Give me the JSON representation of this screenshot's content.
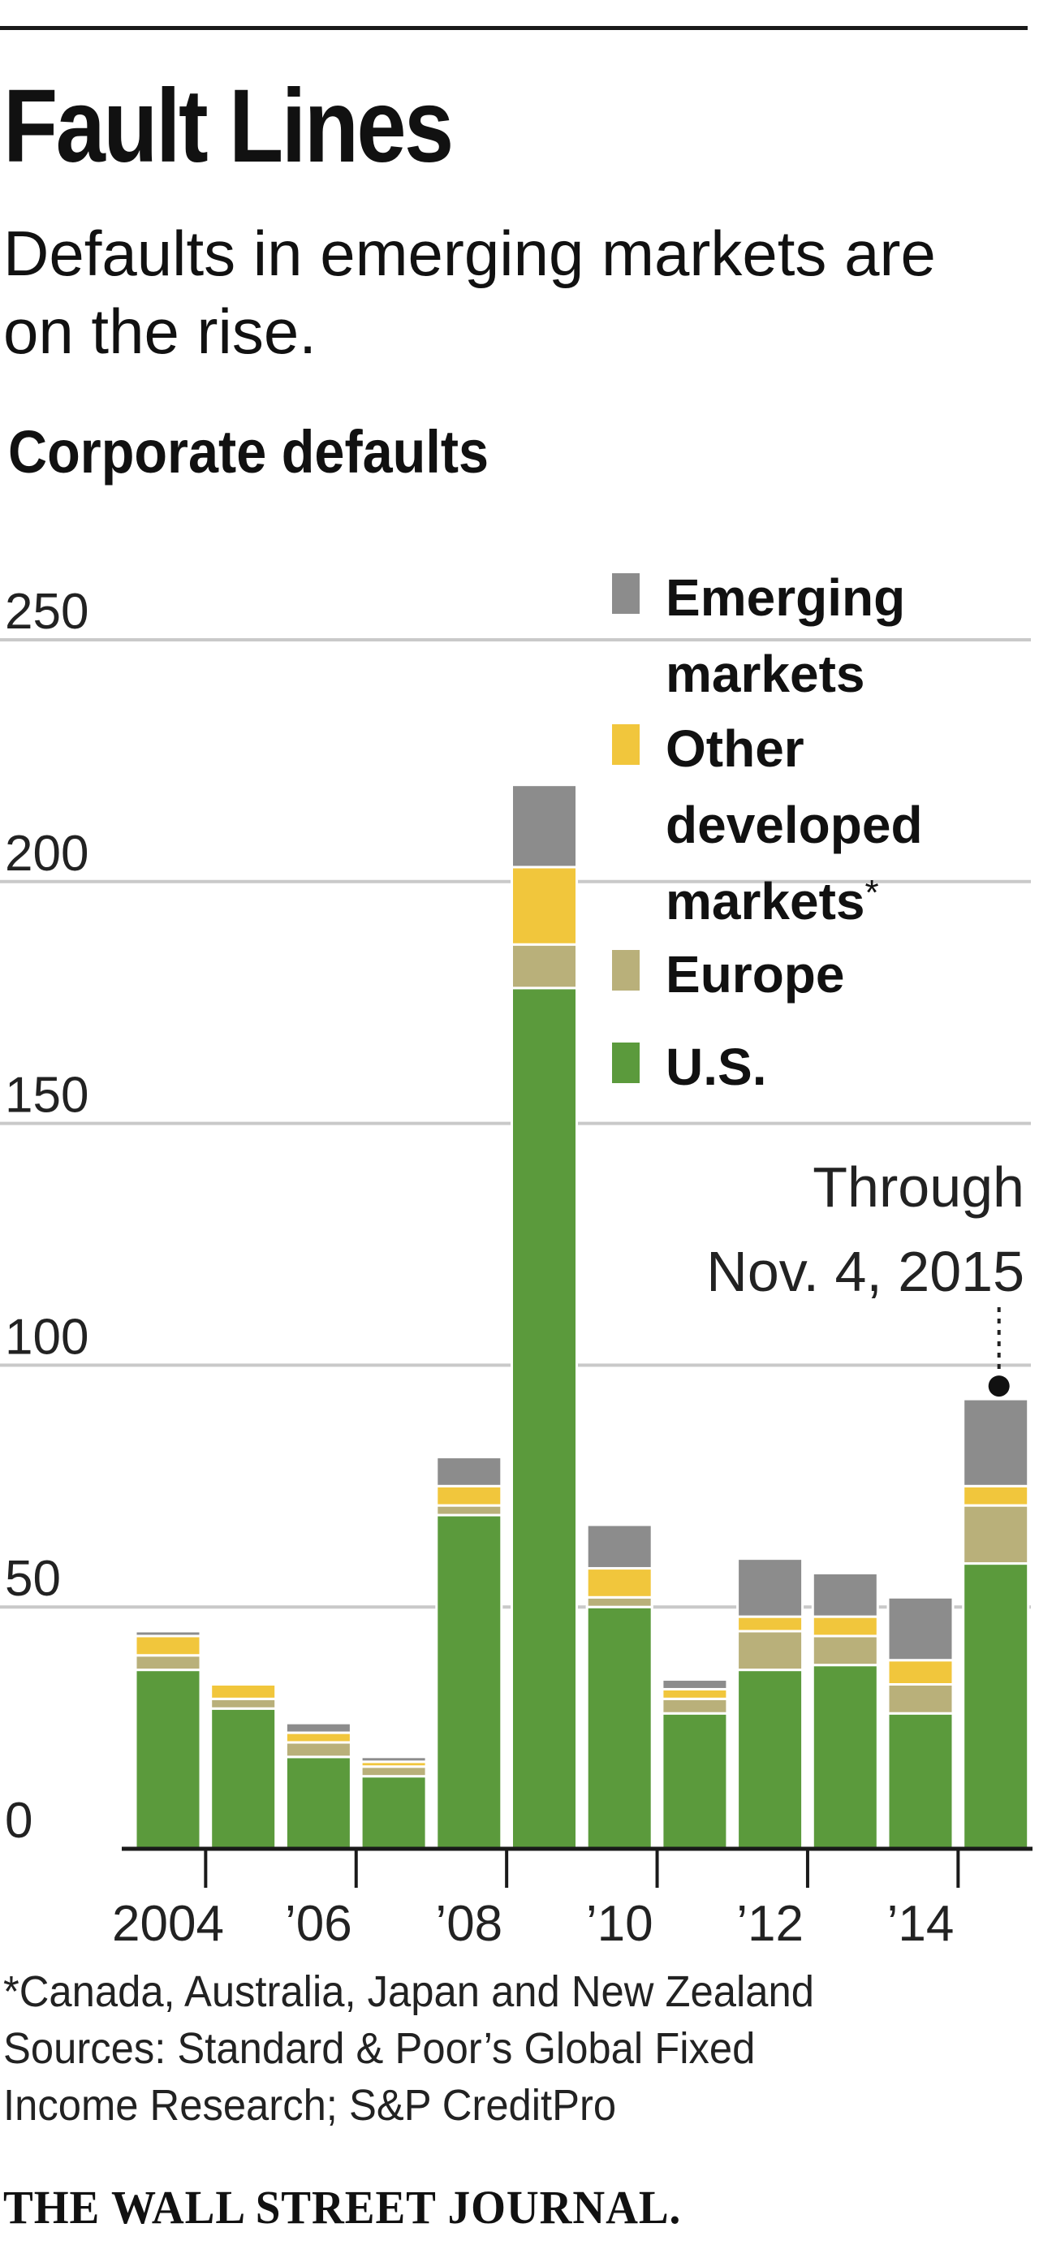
{
  "headline": "Fault Lines",
  "dek": "Defaults in emerging markets are on the rise.",
  "chart_title": "Corporate defaults",
  "chart_data": {
    "type": "bar",
    "stacked": true,
    "title": "Corporate defaults",
    "xlabel": "",
    "ylabel": "",
    "ylim": [
      0,
      250
    ],
    "yticks": [
      0,
      50,
      100,
      150,
      200,
      250
    ],
    "ytick_labels": [
      "0",
      "50",
      "100",
      "150",
      "200",
      "250"
    ],
    "grid": true,
    "legend_position": "top-right",
    "categories": [
      "2004",
      "2005",
      "2006",
      "2007",
      "2008",
      "2009",
      "2010",
      "2011",
      "2012",
      "2013",
      "2014",
      "2015"
    ],
    "xtick_labels": [
      "2004",
      "",
      "’06",
      "",
      "’08",
      "",
      "’10",
      "",
      "’12",
      "",
      "’14",
      ""
    ],
    "series": [
      {
        "name": "U.S.",
        "color": "#5b9a3c",
        "values": [
          37,
          29,
          19,
          15,
          69,
          178,
          50,
          28,
          37,
          38,
          28,
          59
        ]
      },
      {
        "name": "Europe",
        "color": "#b9b07a",
        "values": [
          3,
          2,
          3,
          2,
          2,
          9,
          2,
          3,
          8,
          6,
          6,
          12
        ]
      },
      {
        "name": "Other developed markets*",
        "color": "#f1c63c",
        "values": [
          4,
          3,
          2,
          1,
          4,
          16,
          6,
          2,
          3,
          4,
          5,
          4
        ]
      },
      {
        "name": "Emerging markets",
        "color": "#8c8c8c",
        "values": [
          1,
          0,
          2,
          1,
          6,
          17,
          9,
          2,
          12,
          9,
          13,
          18
        ]
      }
    ],
    "annotation": {
      "category": "2015",
      "line1": "Through",
      "line2": "Nov. 4, 2015"
    }
  },
  "footnote": {
    "note": "*Canada, Australia, Japan and New Zealand",
    "sources_line1": "Sources: Standard & Poor’s Global Fixed",
    "sources_line2": "Income Research; S&P CreditPro"
  },
  "credit": "THE WALL STREET JOURNAL."
}
